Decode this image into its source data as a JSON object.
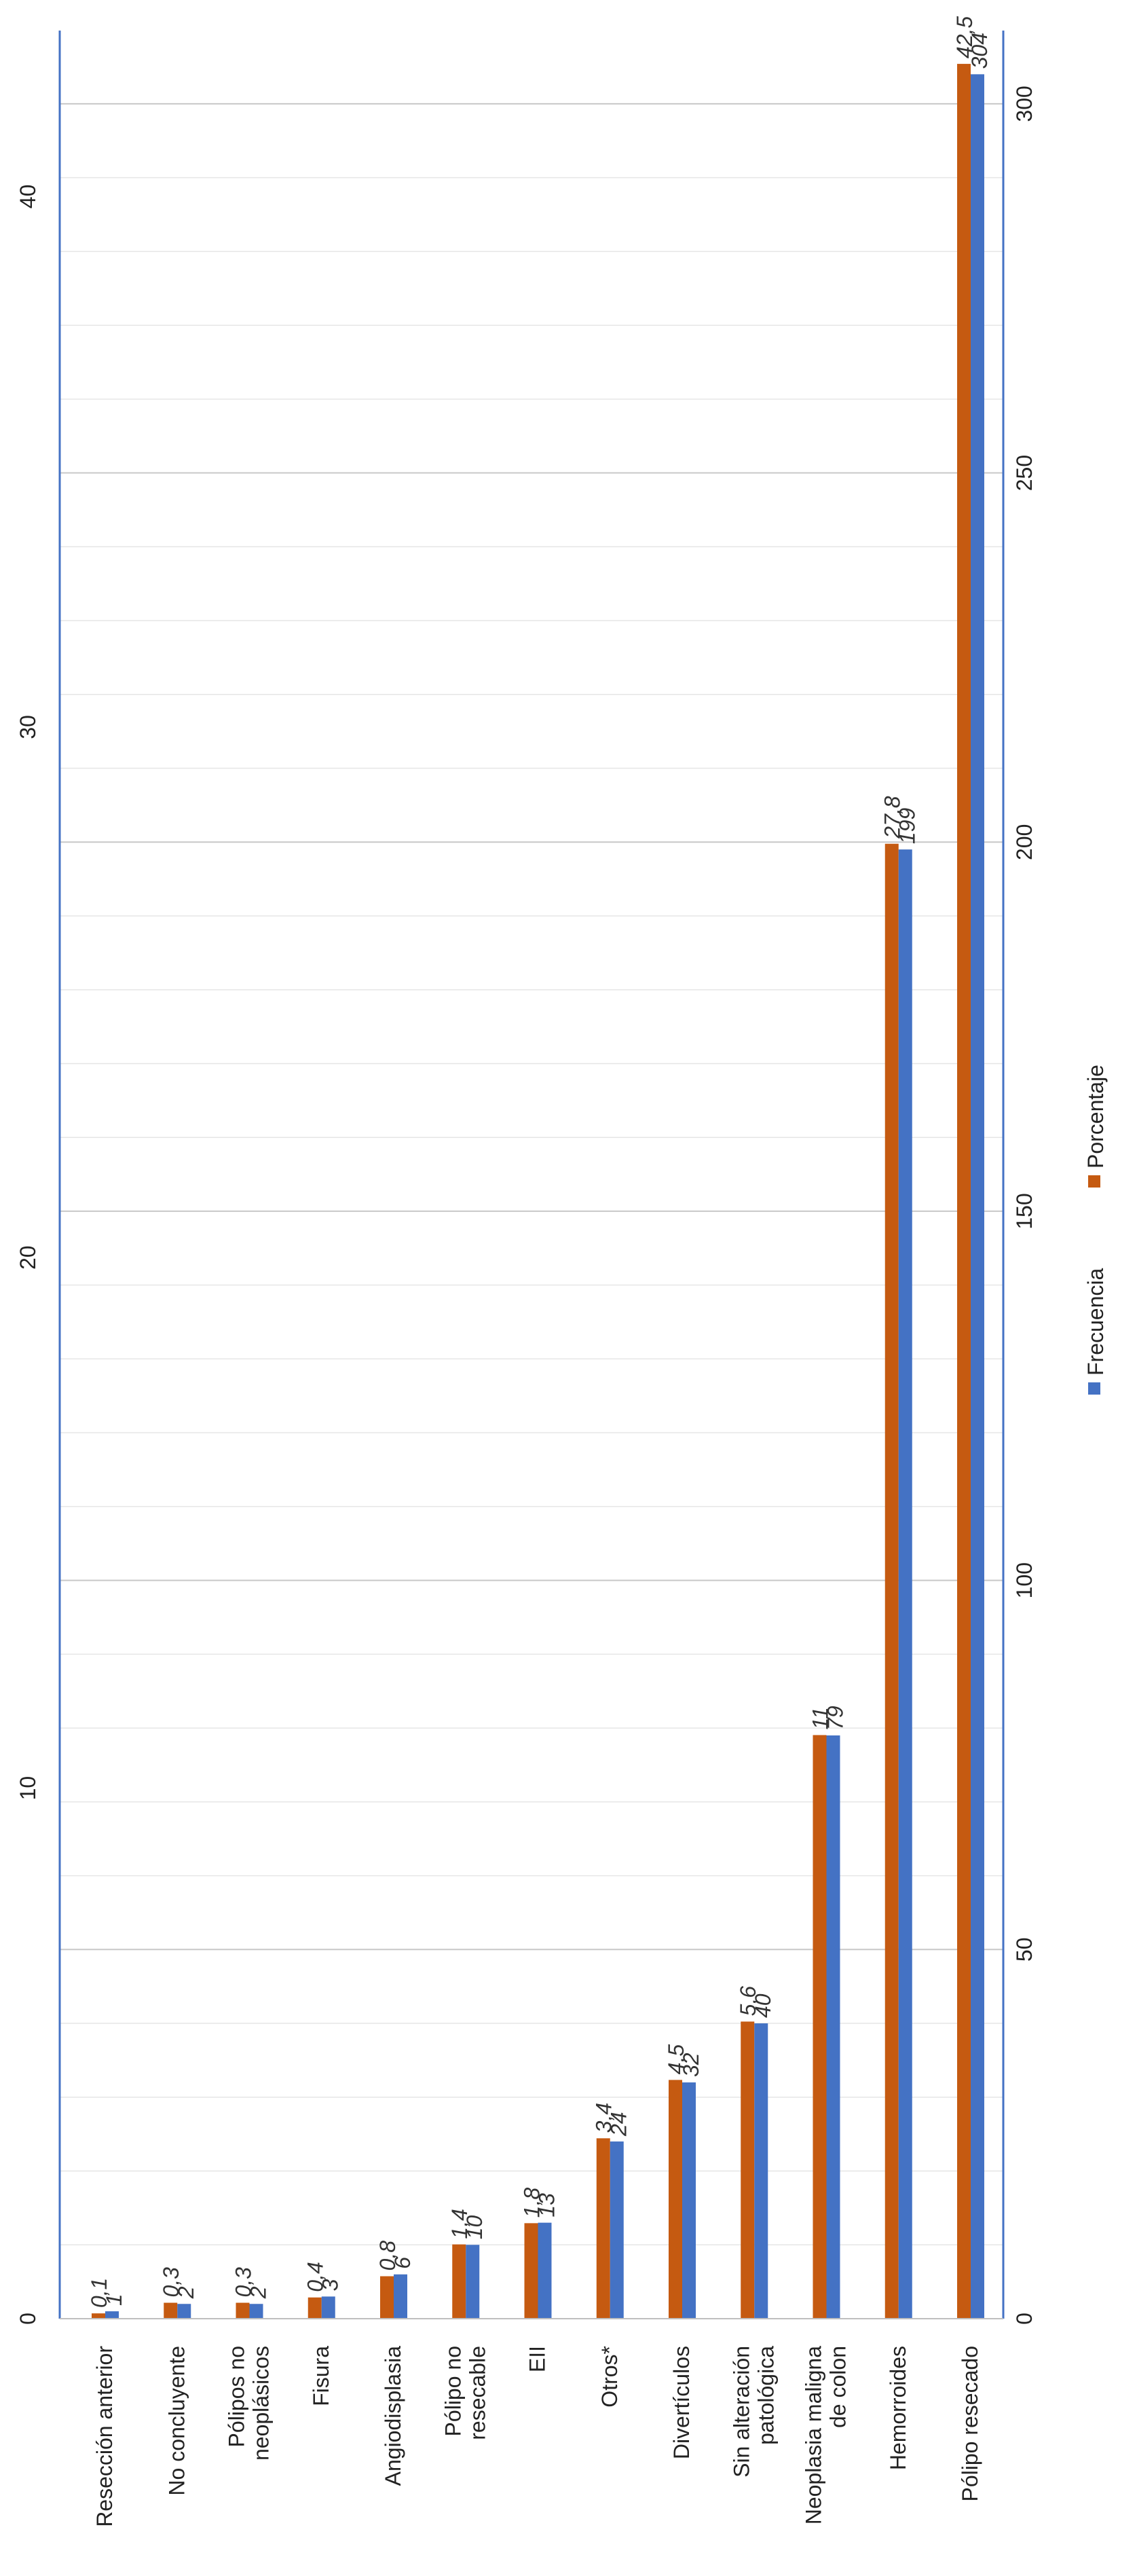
{
  "chart_data": {
    "type": "bar",
    "orientation": "rotated (bars grow upward, labels rotated -90°)",
    "categories": [
      "Resección anterior",
      "No concluyente",
      "Pólipos no neoplásicos",
      "Fisura",
      "Angiodisplasia",
      "Pólipo no resecable",
      "EII",
      "Otros*",
      "Divertículos",
      "Sin alteración patológica",
      "Neoplasia maligna de colon",
      "Hemorroides",
      "Pólipo resecado"
    ],
    "category_lines": [
      [
        "Resección anterior"
      ],
      [
        "No concluyente"
      ],
      [
        "Pólipos no",
        "neoplásicos"
      ],
      [
        "Fisura"
      ],
      [
        "Angiodisplasia"
      ],
      [
        "Pólipo no",
        "resecable"
      ],
      [
        "EII"
      ],
      [
        "Otros*"
      ],
      [
        "Divertículos"
      ],
      [
        "Sin alteración",
        "patológica"
      ],
      [
        "Neoplasia maligna",
        "de colon"
      ],
      [
        "Hemorroides"
      ],
      [
        "Pólipo resecado"
      ]
    ],
    "series": [
      {
        "name": "Porcentaje",
        "color": "#C55A11",
        "axis": "left",
        "values": [
          0.1,
          0.3,
          0.3,
          0.4,
          0.8,
          1.4,
          1.8,
          3.4,
          4.5,
          5.6,
          11,
          27.8,
          42.5
        ],
        "labels": [
          "0,1",
          "0,3",
          "0,3",
          "0,4",
          "0,8",
          "1,4",
          "1,8",
          "3,4",
          "4,5",
          "5,6",
          "11",
          "27,8",
          "42,5"
        ]
      },
      {
        "name": "Frecuencia",
        "color": "#4472C4",
        "axis": "right",
        "values": [
          1,
          2,
          2,
          3,
          6,
          10,
          13,
          24,
          32,
          40,
          79,
          199,
          304
        ],
        "labels": [
          "1",
          "2",
          "2",
          "3",
          "6",
          "10",
          "13",
          "24",
          "32",
          "40",
          "79",
          "199",
          "304"
        ]
      }
    ],
    "left_axis": {
      "ylim": [
        0,
        43
      ],
      "ticks": [
        0,
        10,
        20,
        30,
        40
      ],
      "tick_labels": [
        "0",
        "10",
        "20",
        "30",
        "40"
      ]
    },
    "right_axis": {
      "ylim": [
        0,
        309
      ],
      "ticks": [
        0,
        50,
        100,
        150,
        200,
        250,
        300
      ],
      "tick_labels": [
        "0",
        "50",
        "100",
        "150",
        "200",
        "250",
        "300"
      ]
    },
    "grid": true,
    "legend": {
      "position": "right",
      "entries": [
        "Frecuencia",
        "Porcentaje"
      ]
    }
  }
}
